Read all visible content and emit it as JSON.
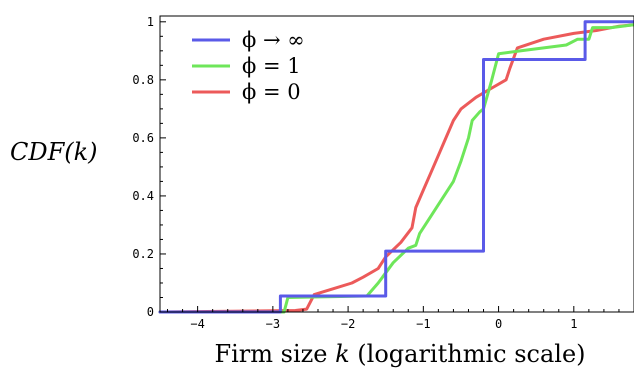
{
  "chart_data": {
    "type": "line",
    "title": "",
    "xlabel_prefix": "Firm size ",
    "xlabel_var": "k",
    "xlabel_suffix": " (logarithmic scale)",
    "ylabel": "CDF(k)",
    "xlim": [
      -4.5,
      1.8
    ],
    "ylim": [
      0,
      1.02
    ],
    "x_ticks": [
      -4,
      -3,
      -2,
      -1,
      0,
      1
    ],
    "x_tick_labels": [
      "−4",
      "−3",
      "−2",
      "−1",
      "0",
      "1"
    ],
    "y_ticks": [
      0,
      0.2,
      0.4,
      0.6,
      0.8,
      1
    ],
    "y_tick_labels": [
      "0",
      "0.2",
      "0.4",
      "0.6",
      "0.8",
      "1"
    ],
    "grid": false,
    "legend_position": "top-left",
    "series": [
      {
        "name": "ϕ → ∞",
        "color": "#5a5ae8",
        "points": [
          [
            -4.5,
            0.0
          ],
          [
            -2.9,
            0.0
          ],
          [
            -2.9,
            0.055
          ],
          [
            -1.5,
            0.055
          ],
          [
            -1.5,
            0.21
          ],
          [
            -0.2,
            0.21
          ],
          [
            -0.2,
            0.87
          ],
          [
            1.15,
            0.87
          ],
          [
            1.15,
            1.0
          ],
          [
            1.8,
            1.0
          ]
        ]
      },
      {
        "name": "ϕ = 1",
        "color": "#6ee65a",
        "points": [
          [
            -4.5,
            0.0
          ],
          [
            -2.85,
            0.0
          ],
          [
            -2.8,
            0.05
          ],
          [
            -1.75,
            0.055
          ],
          [
            -1.6,
            0.1
          ],
          [
            -1.4,
            0.17
          ],
          [
            -1.2,
            0.22
          ],
          [
            -1.1,
            0.23
          ],
          [
            -1.05,
            0.27
          ],
          [
            -0.9,
            0.33
          ],
          [
            -0.8,
            0.37
          ],
          [
            -0.6,
            0.45
          ],
          [
            -0.5,
            0.52
          ],
          [
            -0.4,
            0.6
          ],
          [
            -0.35,
            0.66
          ],
          [
            -0.25,
            0.69
          ],
          [
            -0.2,
            0.7
          ],
          [
            -0.1,
            0.79
          ],
          [
            0.0,
            0.89
          ],
          [
            0.3,
            0.9
          ],
          [
            0.6,
            0.91
          ],
          [
            0.9,
            0.92
          ],
          [
            1.05,
            0.94
          ],
          [
            1.2,
            0.94
          ],
          [
            1.25,
            0.98
          ],
          [
            1.5,
            0.98
          ],
          [
            1.8,
            0.99
          ]
        ]
      },
      {
        "name": "ϕ = 0",
        "color": "#ec5a5a",
        "points": [
          [
            -4.5,
            0.0
          ],
          [
            -2.7,
            0.005
          ],
          [
            -2.55,
            0.01
          ],
          [
            -2.45,
            0.06
          ],
          [
            -2.2,
            0.08
          ],
          [
            -1.95,
            0.1
          ],
          [
            -1.8,
            0.12
          ],
          [
            -1.6,
            0.15
          ],
          [
            -1.5,
            0.19
          ],
          [
            -1.3,
            0.24
          ],
          [
            -1.15,
            0.29
          ],
          [
            -1.1,
            0.36
          ],
          [
            -1.0,
            0.42
          ],
          [
            -0.9,
            0.48
          ],
          [
            -0.8,
            0.54
          ],
          [
            -0.7,
            0.6
          ],
          [
            -0.6,
            0.66
          ],
          [
            -0.5,
            0.7
          ],
          [
            -0.3,
            0.74
          ],
          [
            -0.1,
            0.77
          ],
          [
            0.1,
            0.8
          ],
          [
            0.15,
            0.84
          ],
          [
            0.25,
            0.91
          ],
          [
            0.6,
            0.94
          ],
          [
            1.0,
            0.96
          ],
          [
            1.3,
            0.97
          ],
          [
            1.6,
            0.985
          ],
          [
            1.8,
            0.99
          ]
        ]
      }
    ]
  }
}
